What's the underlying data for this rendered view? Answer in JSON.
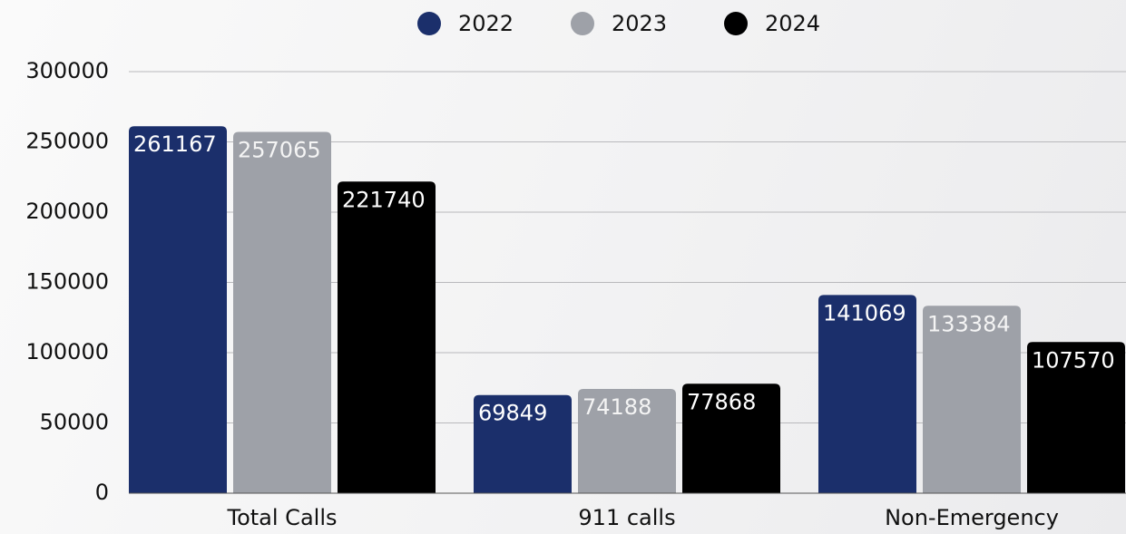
{
  "chart_data": {
    "type": "bar",
    "categories": [
      "Total Calls",
      "911 calls",
      "Non-Emergency"
    ],
    "series": [
      {
        "name": "2022",
        "color": "#1b2f6b",
        "values": [
          261167,
          69849,
          141069
        ]
      },
      {
        "name": "2023",
        "color": "#9ea1a8",
        "values": [
          257065,
          74188,
          133384
        ]
      },
      {
        "name": "2024",
        "color": "#000000",
        "values": [
          221740,
          77868,
          107570
        ]
      }
    ],
    "ylim": [
      0,
      300000
    ],
    "yticks": [
      0,
      50000,
      100000,
      150000,
      200000,
      250000,
      300000
    ],
    "grid": true,
    "legend": "top"
  }
}
